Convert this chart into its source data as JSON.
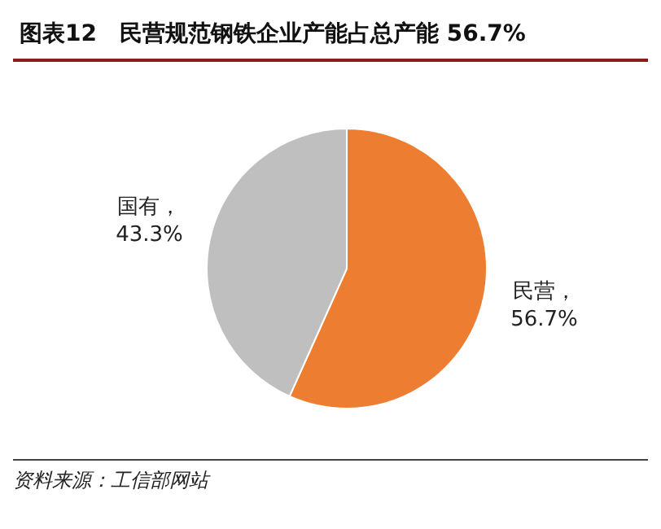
{
  "chart_data": {
    "type": "pie",
    "title": "图表12　民营规范钢铁企业产能占总产能 56.7%",
    "categories": [
      "民营",
      "国有"
    ],
    "values": [
      56.7,
      43.3
    ],
    "colors": [
      "#ed7d31",
      "#bfbfbf"
    ],
    "value_labels": [
      "，\n56.7%",
      "，\n43.3%"
    ],
    "annotations": [
      "资料来源：工信部网站"
    ]
  }
}
